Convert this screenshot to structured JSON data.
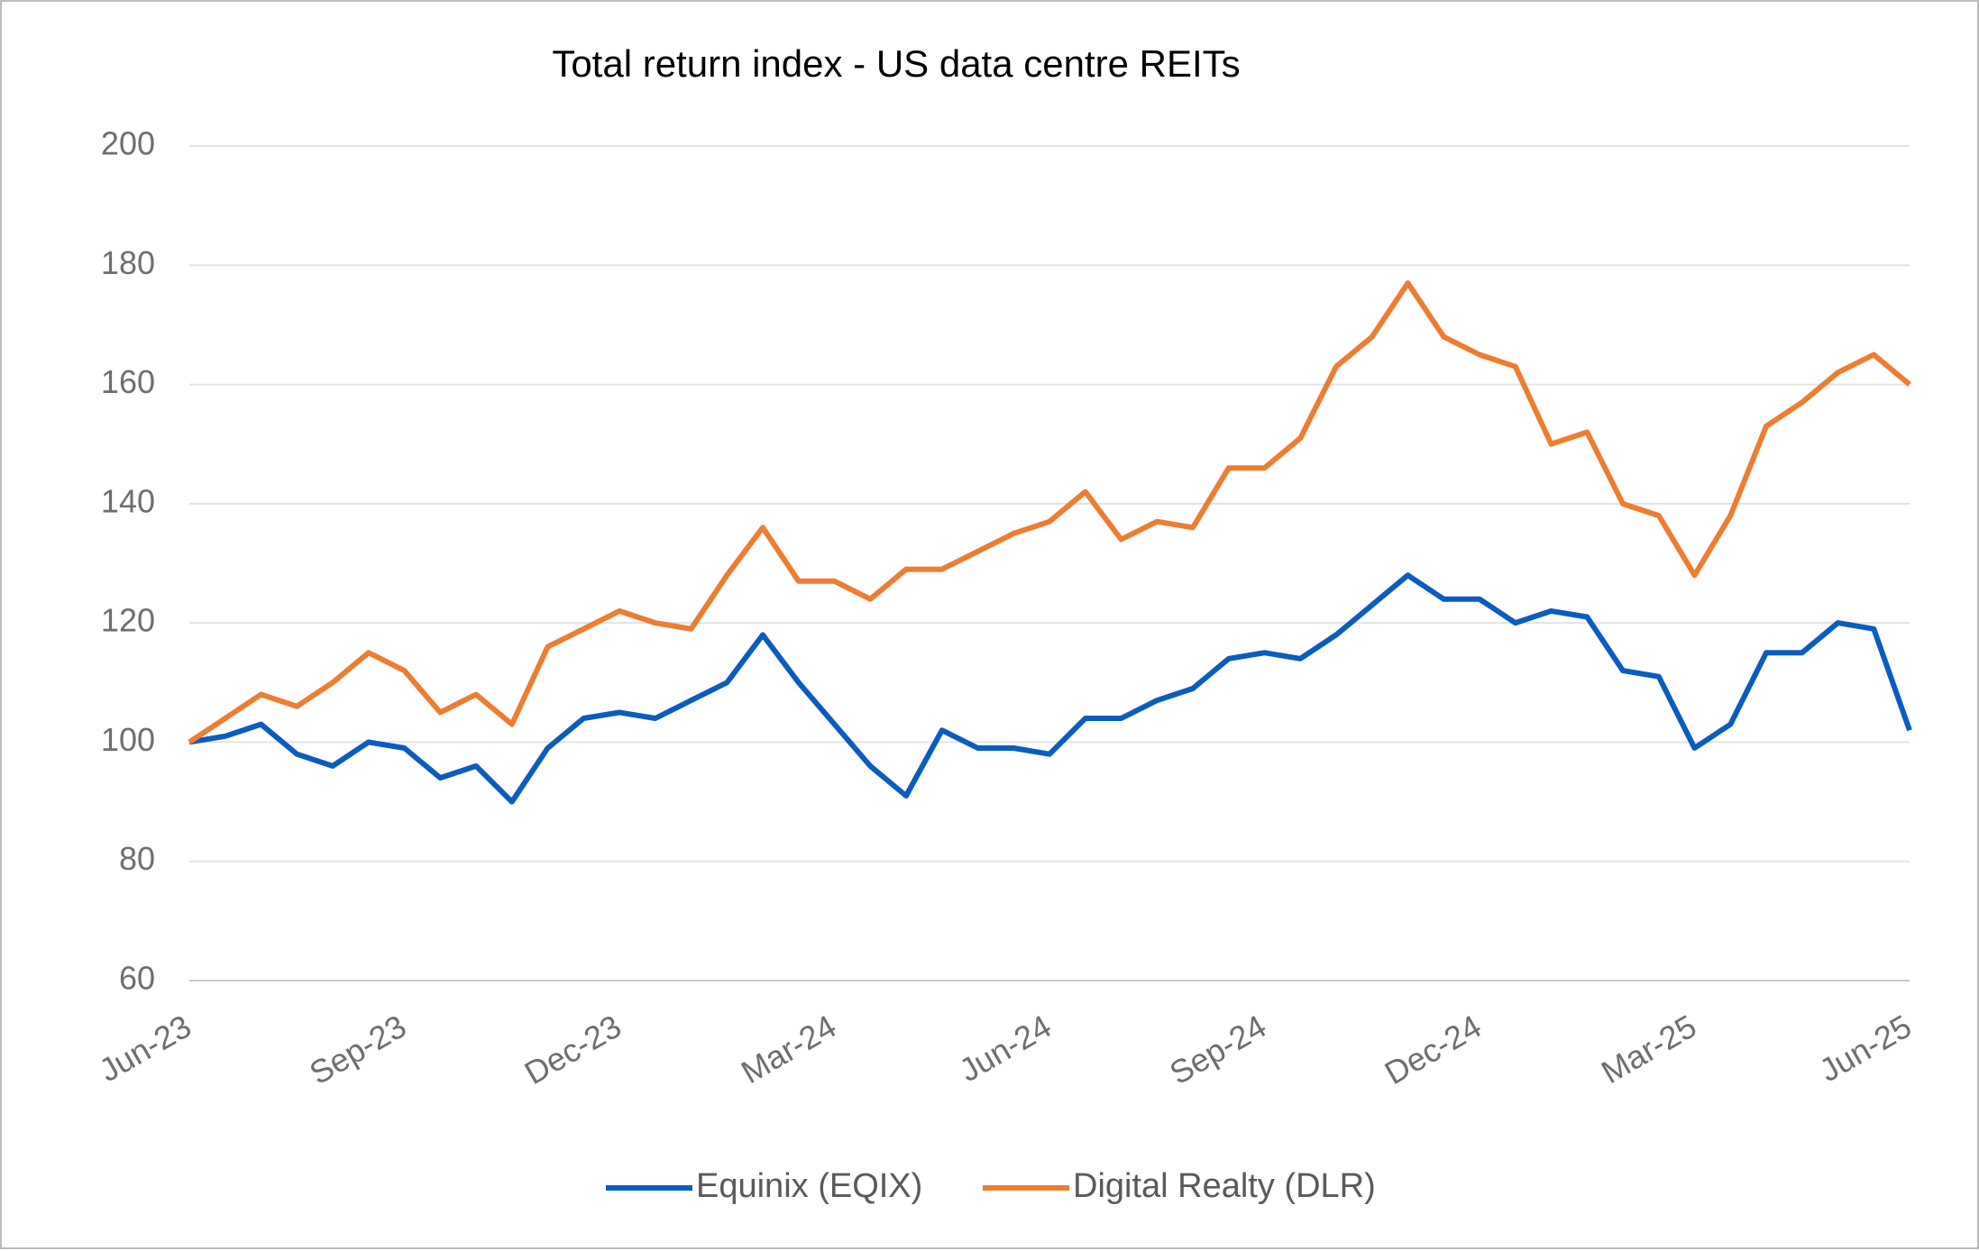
{
  "chart_data": {
    "type": "line",
    "title": "Total return index - US data centre REITs",
    "categories": [
      "Jun-23",
      null,
      null,
      null,
      null,
      null,
      "Sep-23",
      null,
      null,
      null,
      null,
      null,
      "Dec-23",
      null,
      null,
      null,
      null,
      null,
      "Mar-24",
      null,
      null,
      null,
      null,
      null,
      "Jun-24",
      null,
      null,
      null,
      null,
      null,
      "Sep-24",
      null,
      null,
      null,
      null,
      null,
      "Dec-24",
      null,
      null,
      null,
      null,
      null,
      "Mar-25",
      null,
      null,
      null,
      null,
      null,
      "Jun-25"
    ],
    "series": [
      {
        "name": "Equinix (EQIX)",
        "color": "#0b5cbf",
        "values": [
          100,
          101,
          103,
          98,
          96,
          100,
          99,
          94,
          96,
          90,
          99,
          104,
          105,
          104,
          107,
          110,
          118,
          110,
          103,
          96,
          91,
          102,
          99,
          99,
          98,
          104,
          104,
          107,
          109,
          114,
          115,
          114,
          118,
          123,
          128,
          124,
          124,
          120,
          122,
          121,
          112,
          111,
          99,
          103,
          115,
          115,
          120,
          119,
          102
        ]
      },
      {
        "name": "Digital Realty (DLR)",
        "color": "#ed7d31",
        "values": [
          100,
          104,
          108,
          106,
          110,
          115,
          112,
          105,
          108,
          103,
          116,
          119,
          122,
          120,
          119,
          128,
          136,
          127,
          127,
          124,
          129,
          129,
          132,
          135,
          137,
          142,
          134,
          137,
          136,
          146,
          146,
          151,
          163,
          168,
          177,
          168,
          165,
          163,
          150,
          152,
          140,
          138,
          128,
          138,
          153,
          157,
          162,
          165,
          160
        ]
      }
    ],
    "ylim": [
      60,
      200
    ],
    "yticks": [
      60,
      80,
      100,
      120,
      140,
      160,
      180,
      200
    ],
    "grid": true,
    "legend": "bottom"
  }
}
